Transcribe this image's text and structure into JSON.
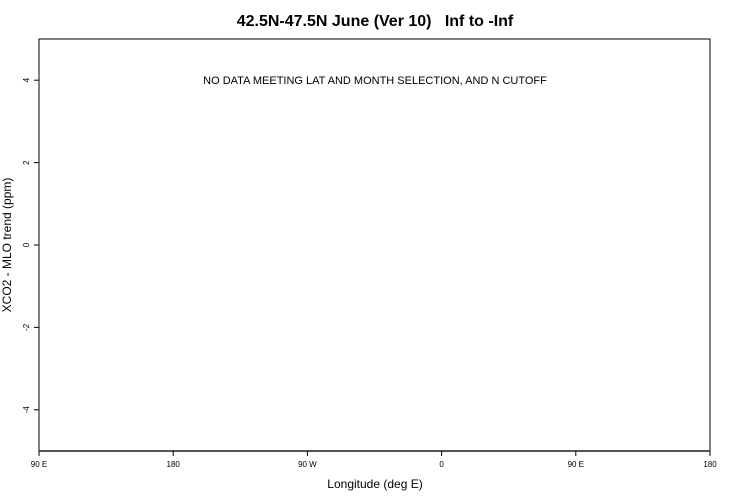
{
  "chart_data": {
    "type": "scatter",
    "title": "42.5N-47.5N June (Ver 10)   Inf to -Inf",
    "xlabel": "Longitude (deg E)",
    "ylabel": "XCO2 - MLO trend (ppm)",
    "xlim": [
      90,
      450
    ],
    "ylim": [
      -5,
      5
    ],
    "x_ticks": [
      90,
      180,
      270,
      360,
      450,
      540
    ],
    "x_tick_labels": [
      "90 E",
      "180",
      "90 W",
      "0",
      "90 E",
      "180"
    ],
    "y_ticks": [
      4,
      2,
      0,
      -2,
      -4
    ],
    "y_tick_labels": [
      "4",
      "2",
      "0",
      "-2",
      "-4"
    ],
    "annotation": "NO DATA MEETING LAT AND MONTH SELECTION, AND N CUTOFF",
    "points": [],
    "grid": false,
    "baseline_color": "#555555"
  }
}
